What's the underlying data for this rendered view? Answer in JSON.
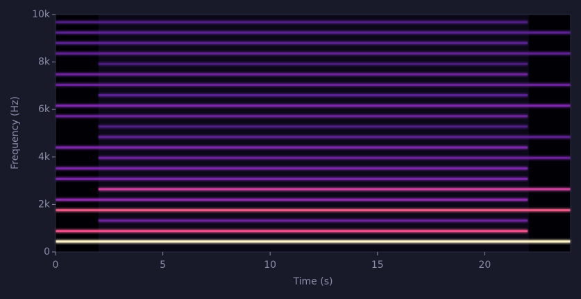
{
  "chart_data": {
    "type": "spectrogram",
    "x_label": "Time (s)",
    "y_label": "Frequency (Hz)",
    "xlim": [
      0,
      24
    ],
    "ylim": [
      0,
      10000
    ],
    "xticks": [
      0,
      5,
      10,
      15,
      20
    ],
    "yticks": [
      0,
      {
        "value": 2000,
        "label": "2k"
      },
      {
        "value": 4000,
        "label": "4k"
      },
      {
        "value": 6000,
        "label": "6k"
      },
      {
        "value": 8000,
        "label": "8k"
      },
      {
        "value": 10000,
        "label": "10k"
      }
    ],
    "bands": [
      {
        "frequency": 440,
        "start": 0,
        "end": 24,
        "color": "#fff2c8"
      },
      {
        "frequency": 880,
        "start": 0,
        "end": 22,
        "color": "#f2508a"
      },
      {
        "frequency": 1320,
        "start": 2,
        "end": 22,
        "color": "#6a2498"
      },
      {
        "frequency": 1760,
        "start": 0,
        "end": 24,
        "color": "#ea5a86"
      },
      {
        "frequency": 2200,
        "start": 0,
        "end": 22,
        "color": "#8a2ca8"
      },
      {
        "frequency": 2640,
        "start": 2,
        "end": 24,
        "color": "#c8429c"
      },
      {
        "frequency": 3080,
        "start": 0,
        "end": 22,
        "color": "#7a28a8"
      },
      {
        "frequency": 3520,
        "start": 0,
        "end": 22,
        "color": "#7a28a8"
      },
      {
        "frequency": 3960,
        "start": 2,
        "end": 24,
        "color": "#6a2498"
      },
      {
        "frequency": 4400,
        "start": 0,
        "end": 22,
        "color": "#7a28a8"
      },
      {
        "frequency": 4840,
        "start": 2,
        "end": 24,
        "color": "#5e2290"
      },
      {
        "frequency": 5280,
        "start": 2,
        "end": 22,
        "color": "#4e1e80"
      },
      {
        "frequency": 5720,
        "start": 0,
        "end": 22,
        "color": "#6a2498"
      },
      {
        "frequency": 6160,
        "start": 0,
        "end": 24,
        "color": "#7a28a8"
      },
      {
        "frequency": 6600,
        "start": 2,
        "end": 22,
        "color": "#5a2290"
      },
      {
        "frequency": 7040,
        "start": 0,
        "end": 24,
        "color": "#6a2498"
      },
      {
        "frequency": 7480,
        "start": 0,
        "end": 22,
        "color": "#6a2498"
      },
      {
        "frequency": 7920,
        "start": 2,
        "end": 22,
        "color": "#4a1c7a"
      },
      {
        "frequency": 8360,
        "start": 0,
        "end": 24,
        "color": "#5e2290"
      },
      {
        "frequency": 8800,
        "start": 0,
        "end": 22,
        "color": "#5a2290"
      },
      {
        "frequency": 9240,
        "start": 0,
        "end": 24,
        "color": "#5a2290"
      },
      {
        "frequency": 9680,
        "start": 0,
        "end": 22,
        "color": "#4e1e80"
      }
    ]
  }
}
